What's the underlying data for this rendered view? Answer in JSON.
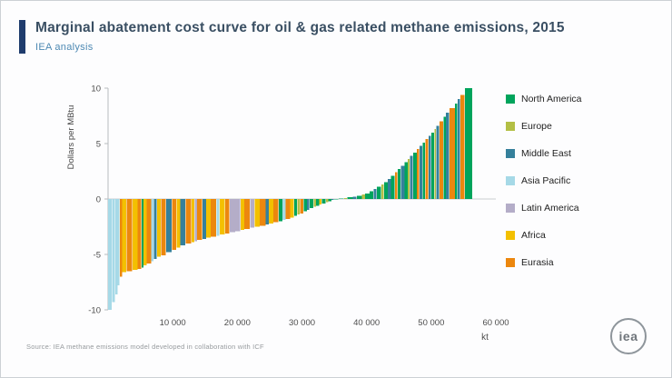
{
  "header": {
    "title": "Marginal abatement cost curve for oil & gas related methane emissions, 2015",
    "subtitle": "IEA analysis"
  },
  "footer": {
    "source": "Source: IEA methane emissions model developed in collaboration with ICF",
    "logo_text": "iea"
  },
  "chart_data": {
    "type": "bar",
    "subtype": "marginal_abatement_cost_curve",
    "title": "Marginal abatement cost curve for oil & gas related methane emissions, 2015",
    "xlabel": "kt",
    "ylabel": "Dollars per MBtu",
    "xlim": [
      0,
      60000
    ],
    "ylim": [
      -10,
      10
    ],
    "x_ticks": [
      10000,
      20000,
      30000,
      40000,
      50000,
      60000
    ],
    "x_tick_labels": [
      "10 000",
      "20 000",
      "30 000",
      "40 000",
      "50 000",
      "60 000"
    ],
    "y_ticks": [
      -10,
      -5,
      0,
      5,
      10
    ],
    "grid": false,
    "legend_position": "right",
    "regions": [
      {
        "name": "North America",
        "color": "#00a45c"
      },
      {
        "name": "Europe",
        "color": "#b3bf45"
      },
      {
        "name": "Middle East",
        "color": "#35809b"
      },
      {
        "name": "Asia Pacific",
        "color": "#a6d9e7"
      },
      {
        "name": "Latin America",
        "color": "#b4adc8"
      },
      {
        "name": "Africa",
        "color": "#f3c000"
      },
      {
        "name": "Eurasia",
        "color": "#ec870e"
      }
    ],
    "segments_format": [
      "region_index",
      "width_kt",
      "cost_usd_per_mbtu"
    ],
    "segments": [
      [
        3,
        600,
        -10
      ],
      [
        3,
        500,
        -9.3
      ],
      [
        3,
        400,
        -8.6
      ],
      [
        3,
        300,
        -7.8
      ],
      [
        6,
        400,
        -7
      ],
      [
        5,
        700,
        -6.6
      ],
      [
        6,
        900,
        -6.5
      ],
      [
        5,
        800,
        -6.4
      ],
      [
        6,
        600,
        -6.3
      ],
      [
        0,
        300,
        -6.2
      ],
      [
        5,
        500,
        -6
      ],
      [
        6,
        700,
        -5.8
      ],
      [
        3,
        400,
        -5.6
      ],
      [
        2,
        500,
        -5.4
      ],
      [
        5,
        600,
        -5.2
      ],
      [
        6,
        800,
        -5.1
      ],
      [
        2,
        900,
        -4.8
      ],
      [
        6,
        700,
        -4.6
      ],
      [
        5,
        600,
        -4.4
      ],
      [
        2,
        800,
        -4.2
      ],
      [
        6,
        900,
        -4
      ],
      [
        5,
        500,
        -3.9
      ],
      [
        4,
        400,
        -3.8
      ],
      [
        6,
        800,
        -3.7
      ],
      [
        2,
        600,
        -3.6
      ],
      [
        5,
        700,
        -3.5
      ],
      [
        6,
        900,
        -3.4
      ],
      [
        3,
        500,
        -3.3
      ],
      [
        5,
        800,
        -3.2
      ],
      [
        6,
        700,
        -3.1
      ],
      [
        4,
        900,
        -3
      ],
      [
        4,
        800,
        -2.9
      ],
      [
        5,
        600,
        -2.8
      ],
      [
        6,
        900,
        -2.7
      ],
      [
        4,
        700,
        -2.6
      ],
      [
        5,
        800,
        -2.5
      ],
      [
        6,
        900,
        -2.4
      ],
      [
        2,
        500,
        -2.3
      ],
      [
        5,
        700,
        -2.2
      ],
      [
        6,
        800,
        -2.1
      ],
      [
        0,
        600,
        -2
      ],
      [
        3,
        500,
        -1.9
      ],
      [
        6,
        700,
        -1.8
      ],
      [
        5,
        600,
        -1.7
      ],
      [
        0,
        500,
        -1.5
      ],
      [
        1,
        400,
        -1.4
      ],
      [
        6,
        600,
        -1.3
      ],
      [
        0,
        500,
        -1.1
      ],
      [
        2,
        400,
        -1
      ],
      [
        0,
        600,
        -0.8
      ],
      [
        1,
        400,
        -0.7
      ],
      [
        0,
        500,
        -0.6
      ],
      [
        5,
        400,
        -0.5
      ],
      [
        0,
        600,
        -0.4
      ],
      [
        1,
        400,
        -0.3
      ],
      [
        0,
        500,
        -0.2
      ],
      [
        2,
        400,
        -0.1
      ],
      [
        0,
        700,
        -0.05
      ],
      [
        0,
        800,
        0.05
      ],
      [
        1,
        500,
        0.1
      ],
      [
        0,
        900,
        0.15
      ],
      [
        2,
        600,
        0.2
      ],
      [
        0,
        800,
        0.3
      ],
      [
        1,
        500,
        0.4
      ],
      [
        0,
        700,
        0.5
      ],
      [
        0,
        600,
        0.7
      ],
      [
        2,
        500,
        0.9
      ],
      [
        0,
        700,
        1.1
      ],
      [
        1,
        400,
        1.3
      ],
      [
        0,
        600,
        1.5
      ],
      [
        2,
        500,
        1.8
      ],
      [
        0,
        600,
        2.1
      ],
      [
        6,
        400,
        2.4
      ],
      [
        0,
        500,
        2.7
      ],
      [
        2,
        600,
        3
      ],
      [
        0,
        500,
        3.3
      ],
      [
        1,
        300,
        3.6
      ],
      [
        2,
        500,
        3.9
      ],
      [
        0,
        600,
        4.2
      ],
      [
        6,
        400,
        4.5
      ],
      [
        2,
        500,
        4.8
      ],
      [
        0,
        400,
        5.1
      ],
      [
        6,
        500,
        5.4
      ],
      [
        2,
        400,
        5.7
      ],
      [
        0,
        500,
        6
      ],
      [
        1,
        300,
        6.3
      ],
      [
        2,
        500,
        6.6
      ],
      [
        6,
        600,
        7
      ],
      [
        0,
        400,
        7.4
      ],
      [
        2,
        500,
        7.8
      ],
      [
        6,
        900,
        8.2
      ],
      [
        0,
        400,
        8.6
      ],
      [
        2,
        400,
        9
      ],
      [
        6,
        700,
        9.4
      ],
      [
        0,
        1200,
        10
      ]
    ]
  }
}
